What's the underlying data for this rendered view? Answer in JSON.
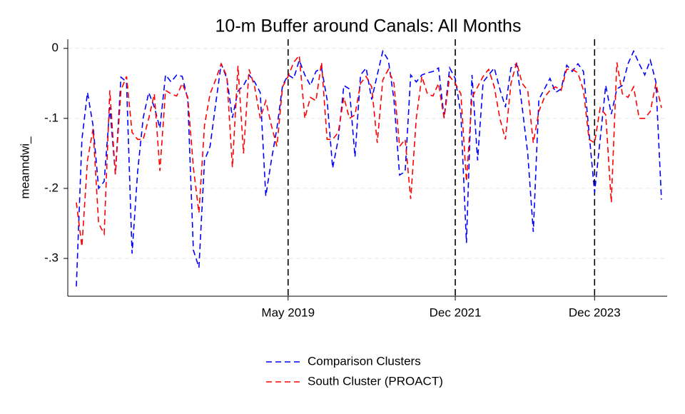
{
  "chart_data": {
    "type": "line",
    "title": "10-m Buffer around Canals: All Months",
    "ylabel": "meanndwi_",
    "categories": [
      null,
      null,
      null,
      null,
      null,
      null,
      null,
      null,
      null,
      null,
      null,
      null,
      null,
      null,
      null,
      null,
      null,
      null,
      null,
      null,
      null,
      null,
      null,
      null,
      null,
      null,
      null,
      null,
      null,
      null,
      null,
      null,
      null,
      null,
      null,
      null,
      null,
      null,
      "May 2019",
      null,
      null,
      null,
      null,
      null,
      null,
      null,
      null,
      null,
      null,
      null,
      null,
      null,
      null,
      null,
      null,
      null,
      null,
      null,
      null,
      null,
      null,
      null,
      null,
      null,
      null,
      null,
      null,
      null,
      "Dec 2021",
      null,
      null,
      null,
      null,
      null,
      null,
      null,
      null,
      null,
      null,
      null,
      null,
      null,
      null,
      null,
      null,
      null,
      null,
      null,
      null,
      null,
      null,
      null,
      null,
      "Dec 2023",
      null,
      null,
      null,
      null,
      null,
      null,
      null,
      null,
      null,
      null,
      null,
      null
    ],
    "vlines_at_labels": true,
    "vline_color": "#000000",
    "series": [
      {
        "name": "Comparison Clusters",
        "color": "#0000ff",
        "values": [
          -0.34,
          -0.13,
          -0.063,
          -0.11,
          -0.2,
          -0.19,
          -0.084,
          -0.18,
          -0.041,
          -0.048,
          -0.293,
          -0.176,
          -0.099,
          -0.063,
          -0.084,
          -0.114,
          -0.038,
          -0.048,
          -0.038,
          -0.04,
          -0.073,
          -0.288,
          -0.313,
          -0.16,
          -0.14,
          -0.08,
          -0.022,
          -0.043,
          -0.099,
          -0.061,
          -0.053,
          -0.038,
          -0.048,
          -0.063,
          -0.211,
          -0.16,
          -0.114,
          -0.053,
          -0.038,
          -0.043,
          -0.017,
          -0.038,
          -0.053,
          -0.033,
          -0.028,
          -0.073,
          -0.171,
          -0.13,
          -0.053,
          -0.058,
          -0.155,
          -0.038,
          -0.028,
          -0.073,
          -0.038,
          -0.004,
          -0.017,
          -0.073,
          -0.181,
          -0.176,
          -0.038,
          -0.048,
          -0.038,
          -0.035,
          -0.033,
          -0.028,
          -0.099,
          -0.028,
          -0.043,
          -0.094,
          -0.278,
          -0.038,
          -0.16,
          -0.048,
          -0.038,
          -0.028,
          -0.058,
          -0.084,
          -0.028,
          -0.022,
          -0.084,
          -0.15,
          -0.262,
          -0.073,
          -0.058,
          -0.043,
          -0.063,
          -0.058,
          -0.024,
          -0.033,
          -0.022,
          -0.033,
          -0.12,
          -0.206,
          -0.13,
          -0.053,
          -0.094,
          -0.058,
          -0.053,
          -0.022,
          -0.004,
          -0.022,
          -0.038,
          -0.017,
          -0.048,
          -0.216
        ]
      },
      {
        "name": "South Cluster (PROACT)",
        "color": "#ff0000",
        "values": [
          -0.22,
          -0.283,
          -0.16,
          -0.115,
          -0.25,
          -0.265,
          -0.06,
          -0.18,
          -0.06,
          -0.04,
          -0.12,
          -0.13,
          -0.13,
          -0.1,
          -0.065,
          -0.175,
          -0.06,
          -0.065,
          -0.068,
          -0.05,
          -0.07,
          -0.17,
          -0.235,
          -0.11,
          -0.065,
          -0.045,
          -0.022,
          -0.04,
          -0.17,
          -0.025,
          -0.15,
          -0.03,
          -0.055,
          -0.1,
          -0.075,
          -0.11,
          -0.14,
          -0.055,
          -0.04,
          -0.02,
          -0.01,
          -0.1,
          -0.07,
          -0.075,
          -0.02,
          -0.13,
          -0.13,
          -0.12,
          -0.07,
          -0.1,
          -0.095,
          -0.05,
          -0.04,
          -0.055,
          -0.135,
          -0.045,
          -0.03,
          -0.05,
          -0.14,
          -0.13,
          -0.215,
          -0.1,
          -0.04,
          -0.065,
          -0.068,
          -0.05,
          -0.1,
          -0.04,
          -0.05,
          -0.065,
          -0.19,
          -0.07,
          -0.055,
          -0.04,
          -0.03,
          -0.055,
          -0.1,
          -0.13,
          -0.05,
          -0.02,
          -0.05,
          -0.06,
          -0.135,
          -0.09,
          -0.07,
          -0.06,
          -0.055,
          -0.06,
          -0.03,
          -0.03,
          -0.035,
          -0.06,
          -0.13,
          -0.135,
          -0.085,
          -0.095,
          -0.22,
          -0.02,
          -0.065,
          -0.07,
          -0.055,
          -0.1,
          -0.1,
          -0.09,
          -0.05,
          -0.085
        ]
      }
    ],
    "ylim": [
      -0.354,
      0.013
    ],
    "yticks": [
      0,
      {
        "value": -0.1,
        "label": "-.1"
      },
      {
        "value": -0.2,
        "label": "-.2"
      },
      {
        "value": -0.3,
        "label": "-.3"
      }
    ],
    "grid": true,
    "legend": "bottom"
  }
}
